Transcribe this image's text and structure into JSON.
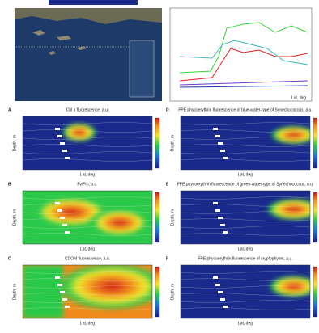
{
  "figure": {
    "top_chart": {
      "x_label": "Lat, deg"
    },
    "panels": [
      {
        "letter": "A",
        "title": "Chl a fluorescence, a.u."
      },
      {
        "letter": "D",
        "title": "FPE phycoerythrin fluorescence of blue-water-type of Synechococcus, a.u."
      },
      {
        "letter": "B",
        "title": "Fv/Fm, a.u."
      },
      {
        "letter": "E",
        "title": "FPE phycoerythrin fluorescence of green-water-type of Synechococcus, a.u."
      },
      {
        "letter": "C",
        "title": "CDOM fluorescence, a.u."
      },
      {
        "letter": "F",
        "title": "FPE phycoerythrin fluorescence of cryptophytes, a.u."
      }
    ],
    "y_label": "Depth, m",
    "x_label": "Lat, deg"
  }
}
